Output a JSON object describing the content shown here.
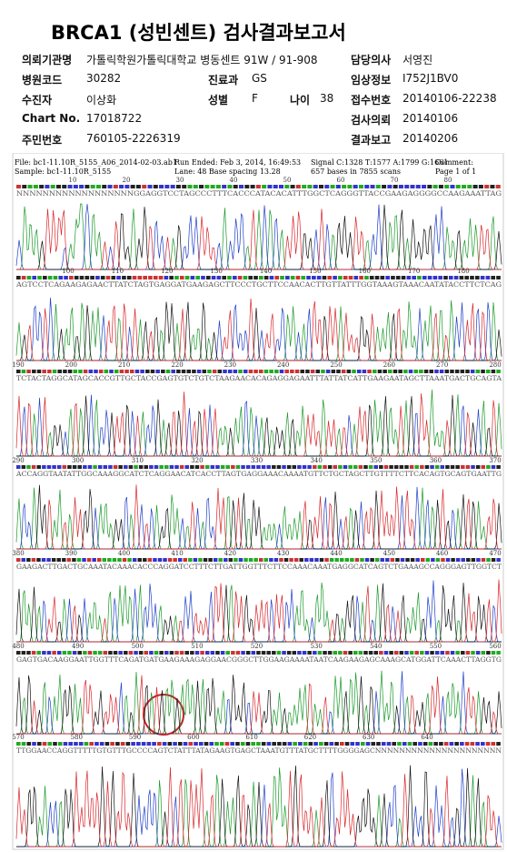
{
  "header": {
    "title": "BRCA1 (성빈센트) 검사결과보고서",
    "fields": [
      {
        "label": "의뢰기관명",
        "value": "가톨릭학원가톨릭대학교 병동센트 91W / 91-908"
      },
      {
        "label": "담당의사",
        "value": "서영진"
      },
      {
        "label": "병원코드",
        "value": "30282"
      },
      {
        "label": "진료과",
        "value": "GS"
      },
      {
        "label": "임상정보",
        "value": "I752J1BV0"
      },
      {
        "label": "수진자",
        "value": "이상화"
      },
      {
        "label": "성별",
        "value": "F"
      },
      {
        "label": "나이",
        "value": "38"
      },
      {
        "label": "접수번호",
        "value": "20140106-22238"
      },
      {
        "label": "Chart No.",
        "value": "17018722"
      },
      {
        "label": "검사의뢰",
        "value": "20140106"
      },
      {
        "label": "주민번호",
        "value": "760105-2226319"
      },
      {
        "label": "결과보고",
        "value": "20140206"
      }
    ]
  },
  "chromatogram": {
    "file": "File: bc1-11.10R_5155_A06_2014-02-03.ab1",
    "sample": "Sample: bc1-11.10R_5155",
    "run_ended": "Run Ended: Feb 3, 2014, 16:49:53",
    "lane": "Lane: 48   Base spacing 13.28",
    "signal": "Signal C:1328 T:1577 A:1799 G:1661",
    "bases": "657 bases in 7855 scans",
    "comment": "Comment:",
    "page": "Page 1 of 1",
    "rows": [
      {
        "positions": [
          10,
          20,
          30,
          40,
          50,
          60,
          70,
          80
        ],
        "sequence": "NNNNNNNNNNNNNNNNNNGGAGGTCCTAGCCCTTTCACCCATACACATTTGGCTCAGGGTTACCGAAGAGGGGCCAAGAAATTAG"
      },
      {
        "positions": [
          100,
          110,
          120,
          130,
          140,
          150,
          160,
          170,
          180
        ],
        "sequence": "AGTCCTCAGAAGAGAACTTATCTAGTGAGGATGAAGAGCTTCCCTGCTTCCAACACTTGTTATTTGGTAAAGTAAACAATATACCTTCTCAG"
      },
      {
        "positions": [
          190,
          200,
          210,
          220,
          230,
          240,
          250,
          260,
          270,
          280
        ],
        "sequence": "TCTACTAGGCATAGCACCGTTGCTACCGAGTGTCTGTCTAAGAACACAGAGGAGAATTTATTATCATTGAAGAATAGCTTAAATGACTGCAGTA"
      },
      {
        "positions": [
          290,
          300,
          310,
          320,
          330,
          340,
          350,
          360,
          370
        ],
        "sequence": "ACCAGGTAATATTGGCAAAGGCATCTCAGGAACATCACCTTAGTGAGGAAACAAAATGTTCTGCTAGCTTGTTTTCTTCACAGTGCAGTGAATTG"
      },
      {
        "positions": [
          380,
          390,
          400,
          410,
          420,
          430,
          440,
          450,
          460,
          470
        ],
        "sequence": "GAAGACTTGACTGCAAATACAAACACCCAGGATCCTTTCTTGATTGGTTTCTTCCAAACAAATGAGGCATCAGTCTGAAAGCCAGGGAGTTGGTCT"
      },
      {
        "positions": [
          480,
          490,
          500,
          510,
          520,
          530,
          540,
          550,
          560
        ],
        "sequence": "GAGTGACAAGGAATTGGTTTCAGATGATGAAGAAAGAGGAACGGGCTTGGAAGAAAATAATCAAGAAGAGCAAAGCATGGATTCAAACTTAGGTG"
      },
      {
        "positions": [
          570,
          580,
          590,
          600,
          610,
          620,
          630,
          640
        ],
        "sequence": "TTGGAACCAGGTTTTTGTGTTTGCCCCAGTCTATTTATAGAAGTGAGCTAAATGTTTATGCTTTTGGGGAGCNNNNNNNNNNNNNNNNNNNNN"
      }
    ]
  }
}
